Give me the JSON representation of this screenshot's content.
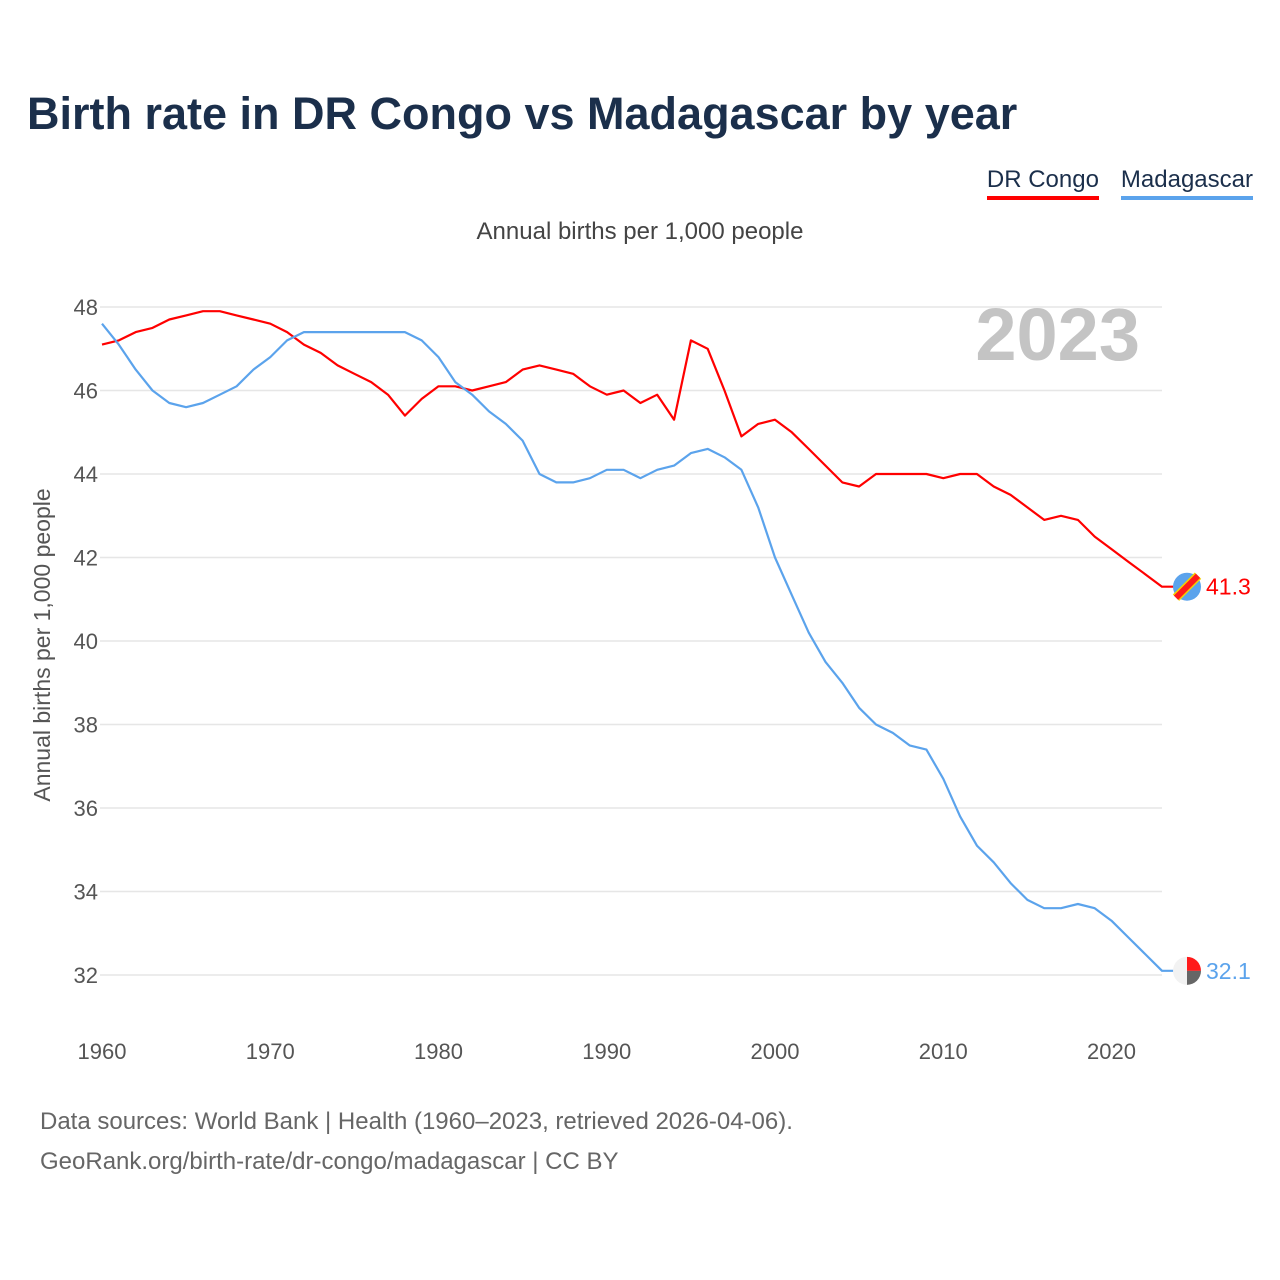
{
  "title": "Birth rate in DR Congo vs Madagascar by year",
  "footer": {
    "line1": "Data sources: World Bank | Health (1960–2023, retrieved 2026-04-06).",
    "line2": "GeoRank.org/birth-rate/dr-congo/madagascar | CC BY"
  },
  "chart_data": {
    "type": "line",
    "title": "Birth rate in DR Congo vs Madagascar by year",
    "subtitle": "Annual births per 1,000 people",
    "xlabel": "",
    "ylabel": "Annual births per 1,000 people",
    "year_label": "2023",
    "xlim": [
      1960,
      2023
    ],
    "ylim": [
      31,
      48.5
    ],
    "yticks": [
      32,
      34,
      36,
      38,
      40,
      42,
      44,
      46,
      48
    ],
    "xticks": [
      1960,
      1970,
      1980,
      1990,
      2000,
      2010,
      2020
    ],
    "grid": true,
    "legend_position": "top-right",
    "x_start": 1960,
    "series": [
      {
        "name": "DR Congo",
        "color": "#ff0000",
        "end_label": "41.3",
        "values": [
          47.1,
          47.2,
          47.4,
          47.5,
          47.7,
          47.8,
          47.9,
          47.9,
          47.8,
          47.7,
          47.6,
          47.4,
          47.1,
          46.9,
          46.6,
          46.4,
          46.2,
          45.9,
          45.4,
          45.8,
          46.1,
          46.1,
          46.0,
          46.1,
          46.2,
          46.5,
          46.6,
          46.5,
          46.4,
          46.1,
          45.9,
          46.0,
          45.7,
          45.9,
          45.3,
          47.2,
          47.0,
          46.0,
          44.9,
          45.2,
          45.3,
          45.0,
          44.6,
          44.2,
          43.8,
          43.7,
          44.0,
          44.0,
          44.0,
          44.0,
          43.9,
          44.0,
          44.0,
          43.7,
          43.5,
          43.2,
          42.9,
          43.0,
          42.9,
          42.5,
          42.2,
          41.9,
          41.6,
          41.3
        ]
      },
      {
        "name": "Madagascar",
        "color": "#5ba3ec",
        "end_label": "32.1",
        "values": [
          47.6,
          47.1,
          46.5,
          46.0,
          45.7,
          45.6,
          45.7,
          45.9,
          46.1,
          46.5,
          46.8,
          47.2,
          47.4,
          47.4,
          47.4,
          47.4,
          47.4,
          47.4,
          47.4,
          47.2,
          46.8,
          46.2,
          45.9,
          45.5,
          45.2,
          44.8,
          44.0,
          43.8,
          43.8,
          43.9,
          44.1,
          44.1,
          43.9,
          44.1,
          44.2,
          44.5,
          44.6,
          44.4,
          44.1,
          43.2,
          42.0,
          41.1,
          40.2,
          39.5,
          39.0,
          38.4,
          38.0,
          37.8,
          37.5,
          37.4,
          36.7,
          35.8,
          35.1,
          34.7,
          34.2,
          33.8,
          33.6,
          33.6,
          33.7,
          33.6,
          33.3,
          32.9,
          32.5,
          32.1
        ]
      }
    ]
  }
}
